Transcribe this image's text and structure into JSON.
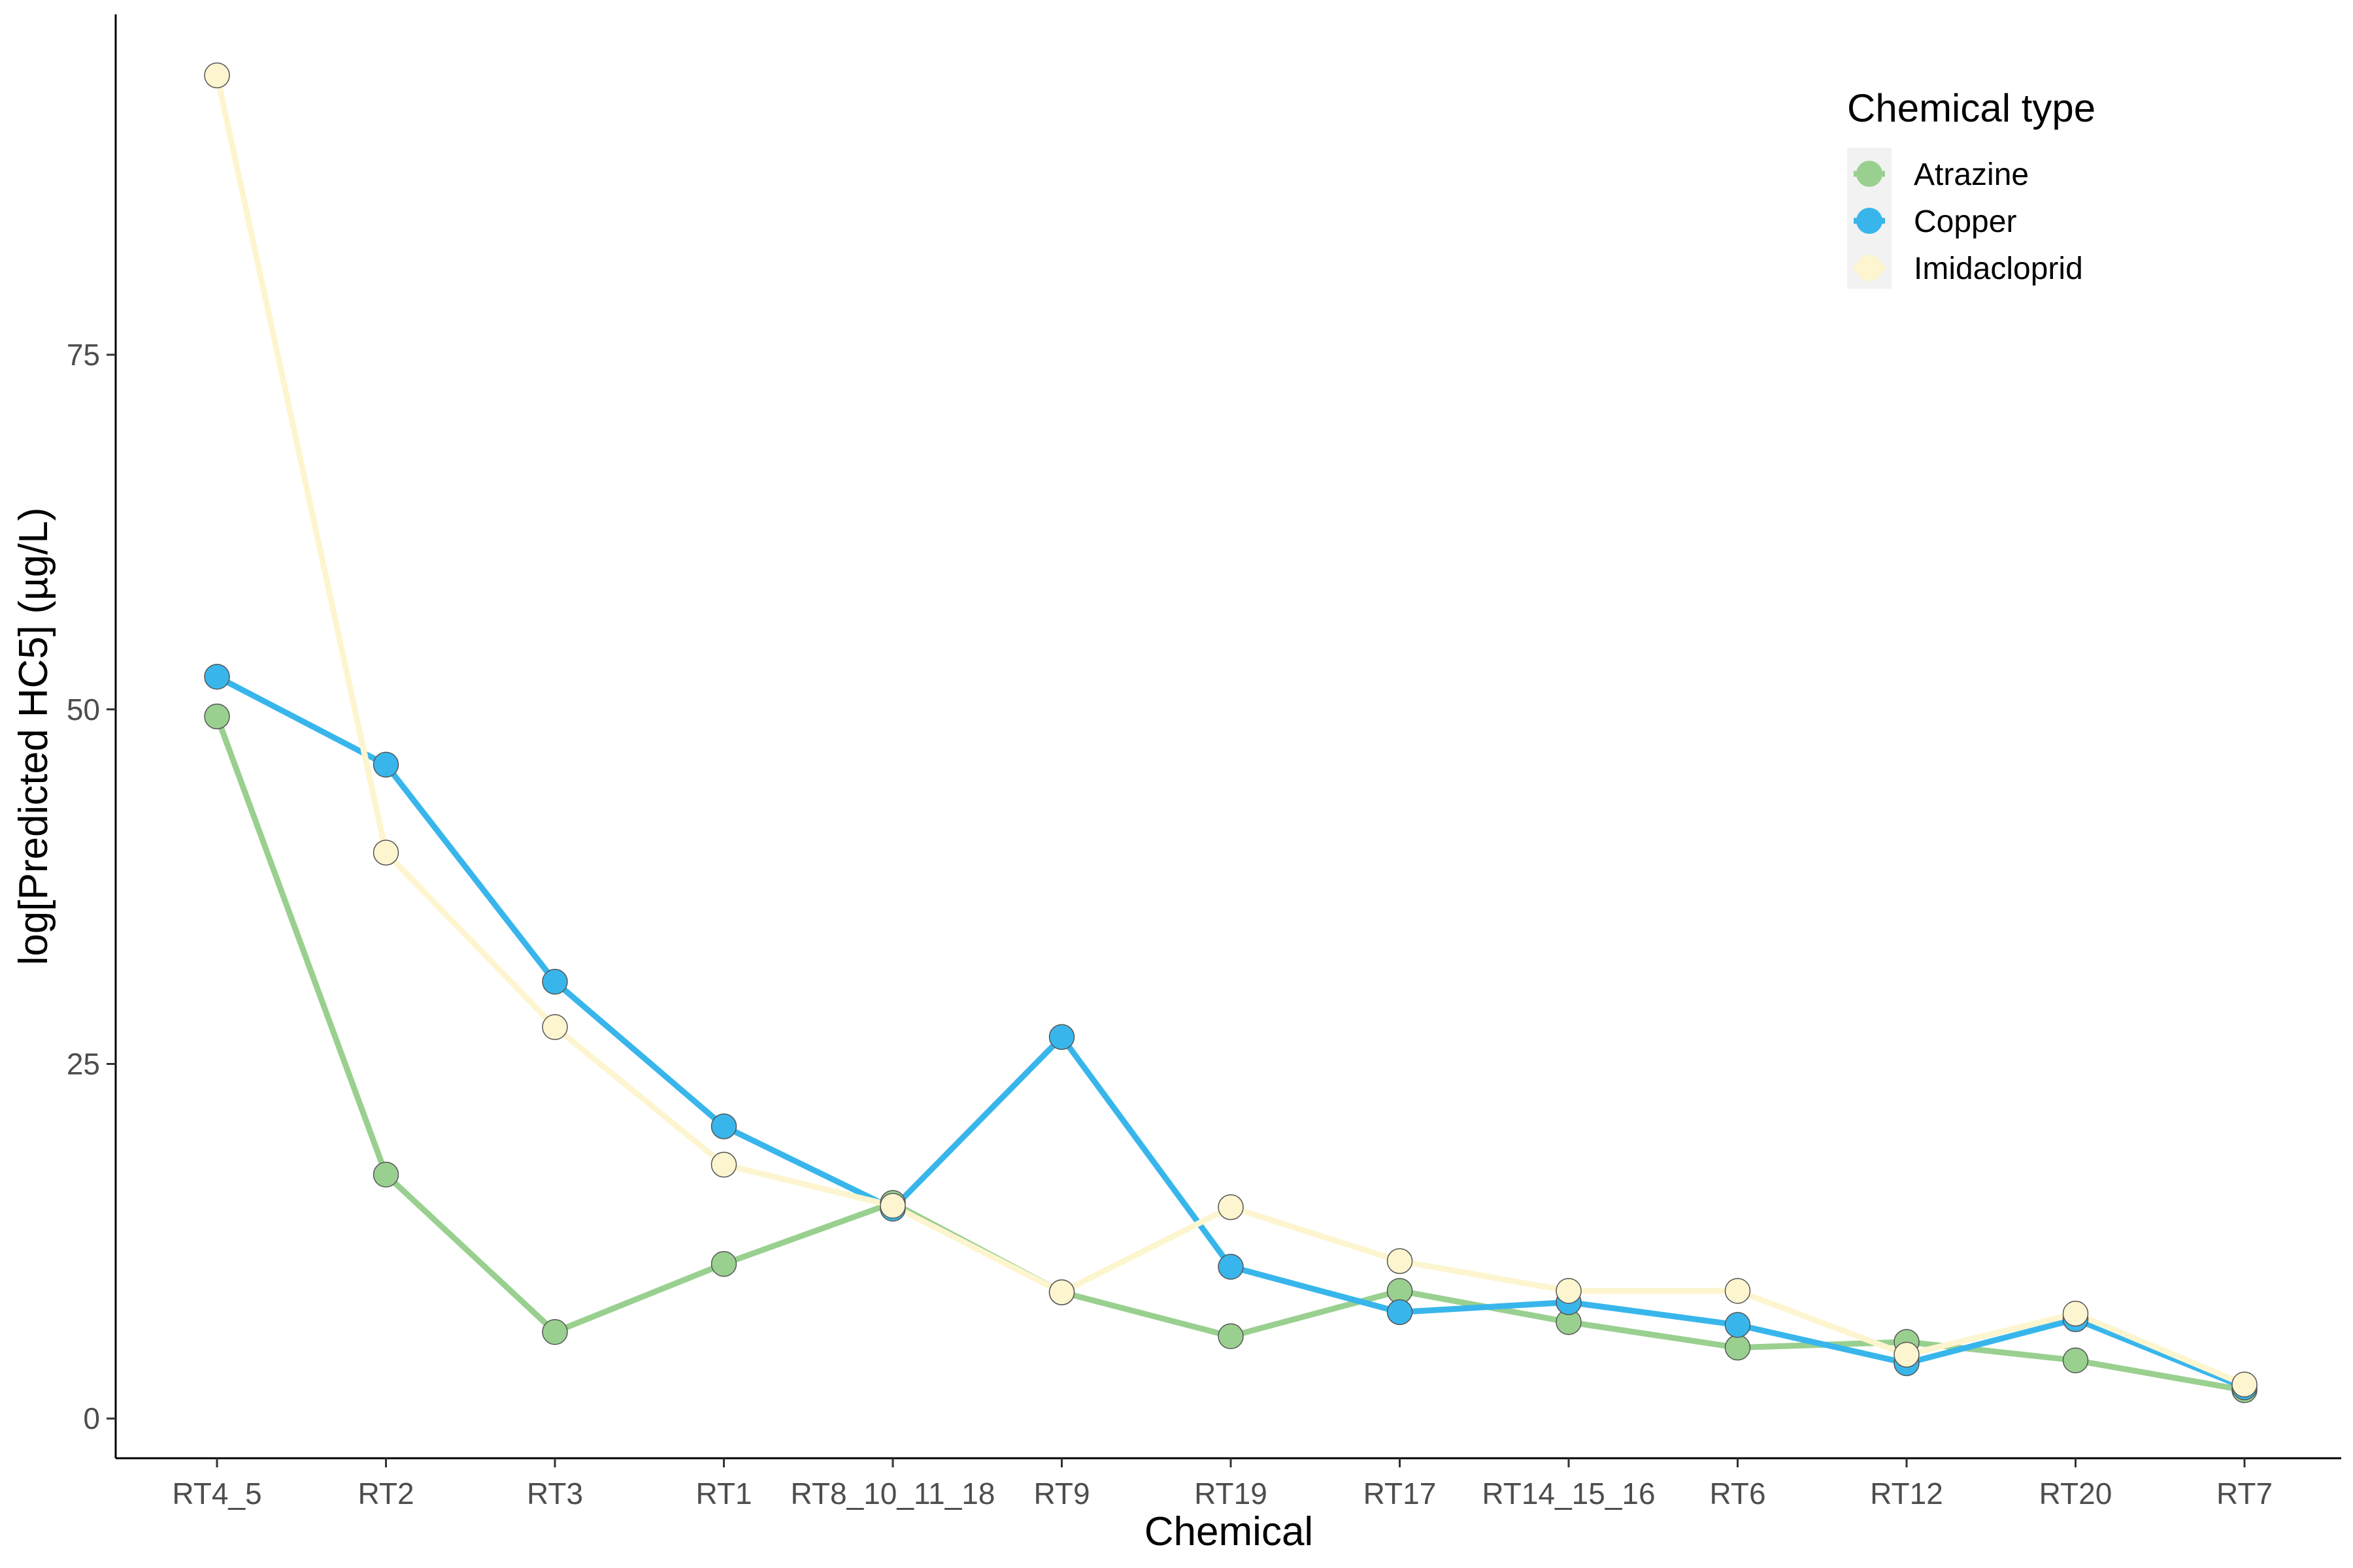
{
  "chart_data": {
    "type": "line",
    "title": "",
    "xlabel": "Chemical",
    "ylabel": "log[Predicted HC5] (µg/L)",
    "categories": [
      "RT4_5",
      "RT2",
      "RT3",
      "RT1",
      "RT8_10_11_18",
      "RT9",
      "RT19",
      "RT17",
      "RT14_15_16",
      "RT6",
      "RT12",
      "RT20",
      "RT7"
    ],
    "ylim": [
      -2.8,
      99
    ],
    "yticks": [
      0,
      25,
      50,
      75
    ],
    "grid": false,
    "legend": {
      "title": "Chemical type",
      "placement": "top-right"
    },
    "series": [
      {
        "name": "Atrazine",
        "color": "#99d08f",
        "values": [
          49.5,
          17.2,
          6.1,
          10.9,
          15.2,
          8.9,
          5.8,
          9.0,
          6.8,
          5.0,
          5.4,
          4.1,
          2.0
        ]
      },
      {
        "name": "Copper",
        "color": "#38b6ec",
        "values": [
          52.3,
          46.1,
          30.8,
          20.6,
          14.8,
          26.9,
          10.7,
          7.5,
          8.2,
          6.6,
          3.9,
          7.0,
          2.2
        ]
      },
      {
        "name": "Imidacloprid",
        "color": "#fdf5cf",
        "values": [
          94.7,
          39.9,
          27.6,
          17.9,
          15.0,
          8.9,
          14.9,
          11.1,
          9.0,
          9.0,
          4.5,
          7.4,
          2.4
        ]
      }
    ]
  }
}
